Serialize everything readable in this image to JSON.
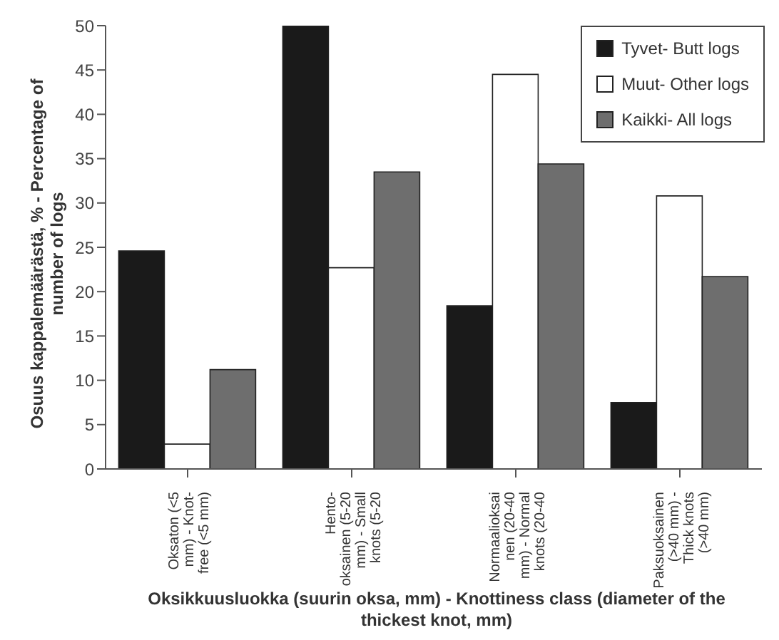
{
  "chart_data": {
    "type": "bar",
    "xlabel": "Oksikkuusluokka (suurin oksa, mm) - Knottiness class (diameter of the\nthickest knot, mm)",
    "ylabel": "Osuus kappalemäärästä, % - Percentage of\nnumber of logs",
    "categories": [
      "Oksaton (<5\nmm) - Knot-\nfree (<5 mm)",
      "Hento-\noksainen (5-20\nmm) - Small\nknots (5-20",
      "Normaalioksai\nnen (20-40\nmm) - Normal\nknots (20-40",
      "Paksuoksainen\n(>40 mm) -\nThick knots\n(>40 mm)"
    ],
    "series": [
      {
        "name": "Tyvet- Butt logs",
        "color": "#1a1a1a",
        "values": [
          24.6,
          50,
          18.4,
          7.5
        ]
      },
      {
        "name": "Muut- Other logs",
        "color": "#ffffff",
        "values": [
          2.8,
          22.7,
          44.5,
          30.8
        ]
      },
      {
        "name": "Kaikki- All logs",
        "color": "#6e6e6e",
        "values": [
          11.2,
          33.5,
          34.4,
          21.7
        ]
      }
    ],
    "ylim": [
      0,
      50
    ],
    "yticks": [
      0,
      5,
      10,
      15,
      20,
      25,
      30,
      35,
      40,
      45,
      50
    ],
    "grid": false,
    "legend": "top right"
  }
}
